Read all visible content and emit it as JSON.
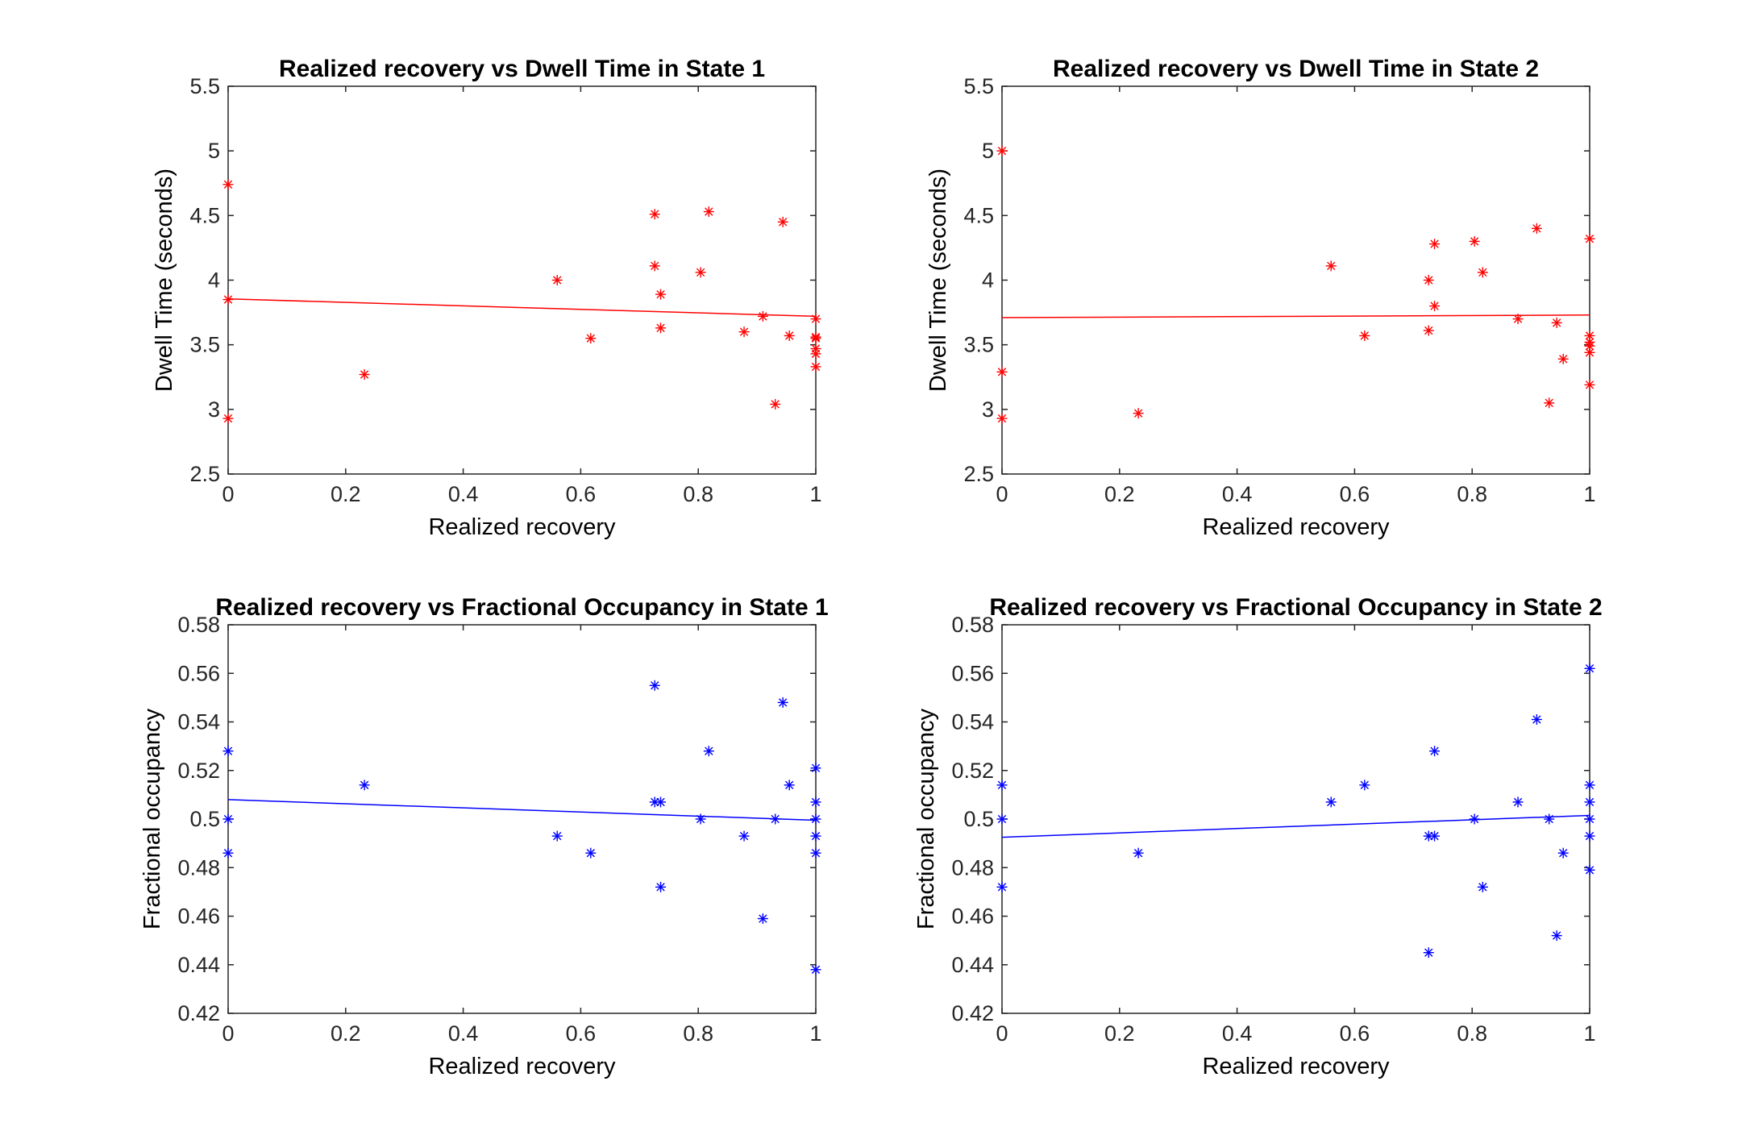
{
  "chart_data": [
    {
      "type": "scatter",
      "title": "Realized recovery vs Dwell Time in State 1",
      "xlabel": "Realized recovery",
      "ylabel": "Dwell Time (seconds)",
      "xlim": [
        0,
        1
      ],
      "ylim": [
        2.5,
        5.5
      ],
      "xticks": [
        "0",
        "0.2",
        "0.4",
        "0.6",
        "0.8",
        "1"
      ],
      "yticks": [
        "2.5",
        "3",
        "3.5",
        "4",
        "4.5",
        "5",
        "5.5"
      ],
      "grid": false,
      "color": "#ff0000",
      "marker": "asterisk",
      "points": [
        [
          0,
          4.74
        ],
        [
          0,
          3.85
        ],
        [
          0,
          2.93
        ],
        [
          0.232,
          3.27
        ],
        [
          0.56,
          4.0
        ],
        [
          0.617,
          3.55
        ],
        [
          0.726,
          4.51
        ],
        [
          0.726,
          4.11
        ],
        [
          0.736,
          3.89
        ],
        [
          0.736,
          3.63
        ],
        [
          0.804,
          4.06
        ],
        [
          0.818,
          4.53
        ],
        [
          0.878,
          3.6
        ],
        [
          0.91,
          3.72
        ],
        [
          0.931,
          3.04
        ],
        [
          0.944,
          4.45
        ],
        [
          0.955,
          3.57
        ],
        [
          1,
          3.7
        ],
        [
          1,
          3.56
        ],
        [
          1,
          3.55
        ],
        [
          1,
          3.47
        ],
        [
          1,
          3.43
        ],
        [
          1,
          3.33
        ]
      ],
      "fit": {
        "x": [
          0,
          1
        ],
        "y": [
          3.855,
          3.72
        ]
      }
    },
    {
      "type": "scatter",
      "title": "Realized recovery vs Dwell Time in State 2",
      "xlabel": "Realized recovery",
      "ylabel": "Dwell Time (seconds)",
      "xlim": [
        0,
        1
      ],
      "ylim": [
        2.5,
        5.5
      ],
      "xticks": [
        "0",
        "0.2",
        "0.4",
        "0.6",
        "0.8",
        "1"
      ],
      "yticks": [
        "2.5",
        "3",
        "3.5",
        "4",
        "4.5",
        "5",
        "5.5"
      ],
      "grid": false,
      "color": "#ff0000",
      "marker": "asterisk",
      "points": [
        [
          0,
          5.0
        ],
        [
          0,
          3.29
        ],
        [
          0,
          2.93
        ],
        [
          0.232,
          2.97
        ],
        [
          0.56,
          4.11
        ],
        [
          0.617,
          3.57
        ],
        [
          0.726,
          4.0
        ],
        [
          0.726,
          3.61
        ],
        [
          0.736,
          4.28
        ],
        [
          0.736,
          3.8
        ],
        [
          0.804,
          4.3
        ],
        [
          0.818,
          4.06
        ],
        [
          0.878,
          3.7
        ],
        [
          0.91,
          4.4
        ],
        [
          0.931,
          3.05
        ],
        [
          0.944,
          3.67
        ],
        [
          0.955,
          3.39
        ],
        [
          1,
          4.32
        ],
        [
          1,
          3.57
        ],
        [
          1,
          3.52
        ],
        [
          1,
          3.49
        ],
        [
          1,
          3.44
        ],
        [
          1,
          3.19
        ]
      ],
      "fit": {
        "x": [
          0,
          1
        ],
        "y": [
          3.71,
          3.73
        ]
      }
    },
    {
      "type": "scatter",
      "title": "Realized recovery vs Fractional Occupancy in State 1",
      "xlabel": "Realized recovery",
      "ylabel": "Fractional occupancy",
      "xlim": [
        0,
        1
      ],
      "ylim": [
        0.42,
        0.58
      ],
      "xticks": [
        "0",
        "0.2",
        "0.4",
        "0.6",
        "0.8",
        "1"
      ],
      "yticks": [
        "0.42",
        "0.44",
        "0.46",
        "0.48",
        "0.5",
        "0.52",
        "0.54",
        "0.56",
        "0.58"
      ],
      "grid": false,
      "color": "#0000ff",
      "marker": "asterisk",
      "points": [
        [
          0,
          0.528
        ],
        [
          0,
          0.5
        ],
        [
          0,
          0.486
        ],
        [
          0.232,
          0.514
        ],
        [
          0.56,
          0.493
        ],
        [
          0.617,
          0.486
        ],
        [
          0.726,
          0.555
        ],
        [
          0.726,
          0.507
        ],
        [
          0.736,
          0.507
        ],
        [
          0.736,
          0.472
        ],
        [
          0.804,
          0.5
        ],
        [
          0.818,
          0.528
        ],
        [
          0.878,
          0.493
        ],
        [
          0.91,
          0.459
        ],
        [
          0.931,
          0.5
        ],
        [
          0.944,
          0.548
        ],
        [
          0.955,
          0.514
        ],
        [
          1,
          0.521
        ],
        [
          1,
          0.507
        ],
        [
          1,
          0.5
        ],
        [
          1,
          0.493
        ],
        [
          1,
          0.486
        ],
        [
          1,
          0.438
        ]
      ],
      "fit": {
        "x": [
          0,
          1
        ],
        "y": [
          0.508,
          0.4995
        ]
      }
    },
    {
      "type": "scatter",
      "title": "Realized recovery vs Fractional Occupancy in State 2",
      "xlabel": "Realized recovery",
      "ylabel": "Fractional occupancy",
      "xlim": [
        0,
        1
      ],
      "ylim": [
        0.42,
        0.58
      ],
      "xticks": [
        "0",
        "0.2",
        "0.4",
        "0.6",
        "0.8",
        "1"
      ],
      "yticks": [
        "0.42",
        "0.44",
        "0.46",
        "0.48",
        "0.5",
        "0.52",
        "0.54",
        "0.56",
        "0.58"
      ],
      "grid": false,
      "color": "#0000ff",
      "marker": "asterisk",
      "points": [
        [
          0,
          0.514
        ],
        [
          0,
          0.5
        ],
        [
          0,
          0.472
        ],
        [
          0.232,
          0.486
        ],
        [
          0.56,
          0.507
        ],
        [
          0.617,
          0.514
        ],
        [
          0.726,
          0.493
        ],
        [
          0.726,
          0.445
        ],
        [
          0.736,
          0.528
        ],
        [
          0.736,
          0.493
        ],
        [
          0.804,
          0.5
        ],
        [
          0.818,
          0.472
        ],
        [
          0.878,
          0.507
        ],
        [
          0.91,
          0.541
        ],
        [
          0.931,
          0.5
        ],
        [
          0.944,
          0.452
        ],
        [
          0.955,
          0.486
        ],
        [
          1,
          0.562
        ],
        [
          1,
          0.514
        ],
        [
          1,
          0.507
        ],
        [
          1,
          0.5
        ],
        [
          1,
          0.493
        ],
        [
          1,
          0.479
        ]
      ],
      "fit": {
        "x": [
          0,
          1
        ],
        "y": [
          0.4925,
          0.5015
        ]
      }
    }
  ]
}
